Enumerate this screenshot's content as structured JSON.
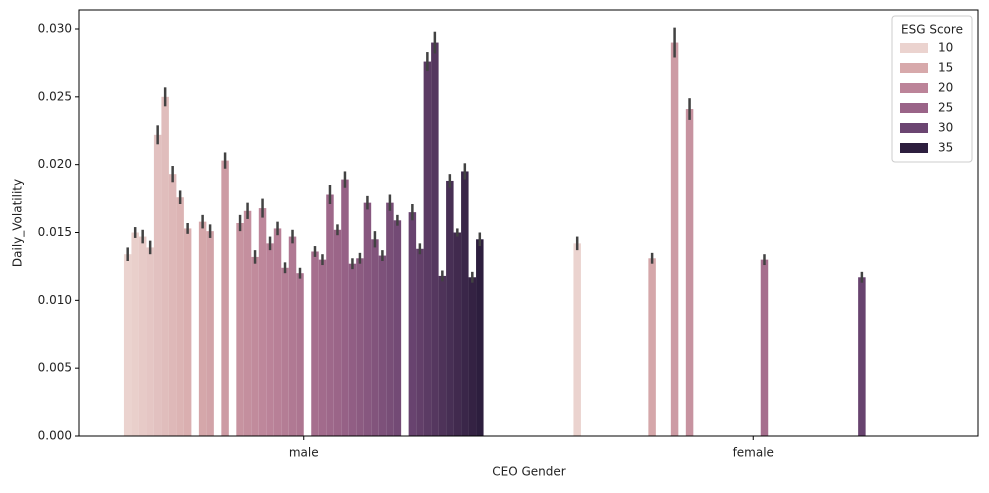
{
  "chart_data": {
    "type": "bar",
    "xlabel": "CEO Gender",
    "ylabel": "Daily_Volatility",
    "categories": [
      "male",
      "female"
    ],
    "ylim": [
      0,
      0.0314
    ],
    "yticks": [
      {
        "value": 0,
        "label": "0.000"
      },
      {
        "value": 0.005,
        "label": "0.005"
      },
      {
        "value": 0.01,
        "label": "0.010"
      },
      {
        "value": 0.015,
        "label": "0.015"
      },
      {
        "value": 0.02,
        "label": "0.020"
      },
      {
        "value": 0.025,
        "label": "0.025"
      },
      {
        "value": 0.03,
        "label": "0.030"
      }
    ],
    "palette": [
      "#ebd3cf",
      "#d7a9ab",
      "#bc8499",
      "#9a6488",
      "#6b4571",
      "#2d1e3e"
    ],
    "legend": {
      "title": "ESG Score",
      "position": "upper right",
      "entries": [
        {
          "label": "10",
          "color": "#ebd3cf"
        },
        {
          "label": "15",
          "color": "#d7a9ab"
        },
        {
          "label": "20",
          "color": "#bc8499"
        },
        {
          "label": "25",
          "color": "#9a6488"
        },
        {
          "label": "30",
          "color": "#6b4571"
        },
        {
          "label": "35",
          "color": "#2d1e3e"
        }
      ]
    },
    "series": [
      {
        "values": [
          0.0134,
          0.0142
        ],
        "errors": [
          0.0005,
          0.0005
        ]
      },
      {
        "values": [
          0.015,
          null
        ],
        "errors": [
          0.0004,
          null
        ]
      },
      {
        "values": [
          0.0147,
          null
        ],
        "errors": [
          0.0005,
          null
        ]
      },
      {
        "values": [
          0.0139,
          null
        ],
        "errors": [
          0.0005,
          null
        ]
      },
      {
        "values": [
          0.0222,
          null
        ],
        "errors": [
          0.0007,
          null
        ]
      },
      {
        "values": [
          0.025,
          null
        ],
        "errors": [
          0.0007,
          null
        ]
      },
      {
        "values": [
          0.0193,
          null
        ],
        "errors": [
          0.0006,
          null
        ]
      },
      {
        "values": [
          0.0176,
          null
        ],
        "errors": [
          0.0005,
          null
        ]
      },
      {
        "values": [
          0.0153,
          null
        ],
        "errors": [
          0.0004,
          null
        ]
      },
      {
        "values": [
          null,
          null
        ],
        "errors": [
          null,
          null
        ]
      },
      {
        "values": [
          0.0158,
          0.0131
        ],
        "errors": [
          0.0005,
          0.0004
        ]
      },
      {
        "values": [
          0.0151,
          null
        ],
        "errors": [
          0.0005,
          null
        ]
      },
      {
        "values": [
          null,
          null
        ],
        "errors": [
          null,
          null
        ]
      },
      {
        "values": [
          0.0203,
          0.029
        ],
        "errors": [
          0.0006,
          0.0011
        ]
      },
      {
        "values": [
          null,
          null
        ],
        "errors": [
          null,
          null
        ]
      },
      {
        "values": [
          0.0157,
          0.0241
        ],
        "errors": [
          0.0006,
          0.0008
        ]
      },
      {
        "values": [
          0.0166,
          null
        ],
        "errors": [
          0.0006,
          null
        ]
      },
      {
        "values": [
          0.0132,
          null
        ],
        "errors": [
          0.0005,
          null
        ]
      },
      {
        "values": [
          0.0168,
          null
        ],
        "errors": [
          0.0007,
          null
        ]
      },
      {
        "values": [
          0.0142,
          null
        ],
        "errors": [
          0.0005,
          null
        ]
      },
      {
        "values": [
          0.0153,
          null
        ],
        "errors": [
          0.0005,
          null
        ]
      },
      {
        "values": [
          0.0124,
          null
        ],
        "errors": [
          0.0004,
          null
        ]
      },
      {
        "values": [
          0.0147,
          null
        ],
        "errors": [
          0.0005,
          null
        ]
      },
      {
        "values": [
          0.012,
          null
        ],
        "errors": [
          0.0004,
          null
        ]
      },
      {
        "values": [
          null,
          null
        ],
        "errors": [
          null,
          null
        ]
      },
      {
        "values": [
          0.0136,
          0.013
        ],
        "errors": [
          0.0004,
          0.0004
        ]
      },
      {
        "values": [
          0.013,
          null
        ],
        "errors": [
          0.0004,
          null
        ]
      },
      {
        "values": [
          0.0178,
          null
        ],
        "errors": [
          0.0007,
          null
        ]
      },
      {
        "values": [
          0.0152,
          null
        ],
        "errors": [
          0.0004,
          null
        ]
      },
      {
        "values": [
          0.0189,
          null
        ],
        "errors": [
          0.0006,
          null
        ]
      },
      {
        "values": [
          0.0127,
          null
        ],
        "errors": [
          0.0004,
          null
        ]
      },
      {
        "values": [
          0.0131,
          null
        ],
        "errors": [
          0.0004,
          null
        ]
      },
      {
        "values": [
          0.0172,
          null
        ],
        "errors": [
          0.0005,
          null
        ]
      },
      {
        "values": [
          0.0145,
          null
        ],
        "errors": [
          0.0006,
          null
        ]
      },
      {
        "values": [
          0.0133,
          null
        ],
        "errors": [
          0.0004,
          null
        ]
      },
      {
        "values": [
          0.0172,
          null
        ],
        "errors": [
          0.0006,
          null
        ]
      },
      {
        "values": [
          0.0159,
          null
        ],
        "errors": [
          0.0004,
          null
        ]
      },
      {
        "values": [
          null,
          null
        ],
        "errors": [
          null,
          null
        ]
      },
      {
        "values": [
          0.0165,
          0.0117
        ],
        "errors": [
          0.0006,
          0.0004
        ]
      },
      {
        "values": [
          0.0138,
          null
        ],
        "errors": [
          0.0004,
          null
        ]
      },
      {
        "values": [
          0.0276,
          null
        ],
        "errors": [
          0.0007,
          null
        ]
      },
      {
        "values": [
          0.029,
          null
        ],
        "errors": [
          0.0008,
          null
        ]
      },
      {
        "values": [
          0.0118,
          null
        ],
        "errors": [
          0.0004,
          null
        ]
      },
      {
        "values": [
          0.0188,
          null
        ],
        "errors": [
          0.0005,
          null
        ]
      },
      {
        "values": [
          0.015,
          null
        ],
        "errors": [
          0.0003,
          null
        ]
      },
      {
        "values": [
          0.0195,
          null
        ],
        "errors": [
          0.0006,
          null
        ]
      },
      {
        "values": [
          0.0117,
          null
        ],
        "errors": [
          0.0004,
          null
        ]
      },
      {
        "values": [
          0.0145,
          null
        ],
        "errors": [
          0.0005,
          null
        ]
      }
    ]
  }
}
